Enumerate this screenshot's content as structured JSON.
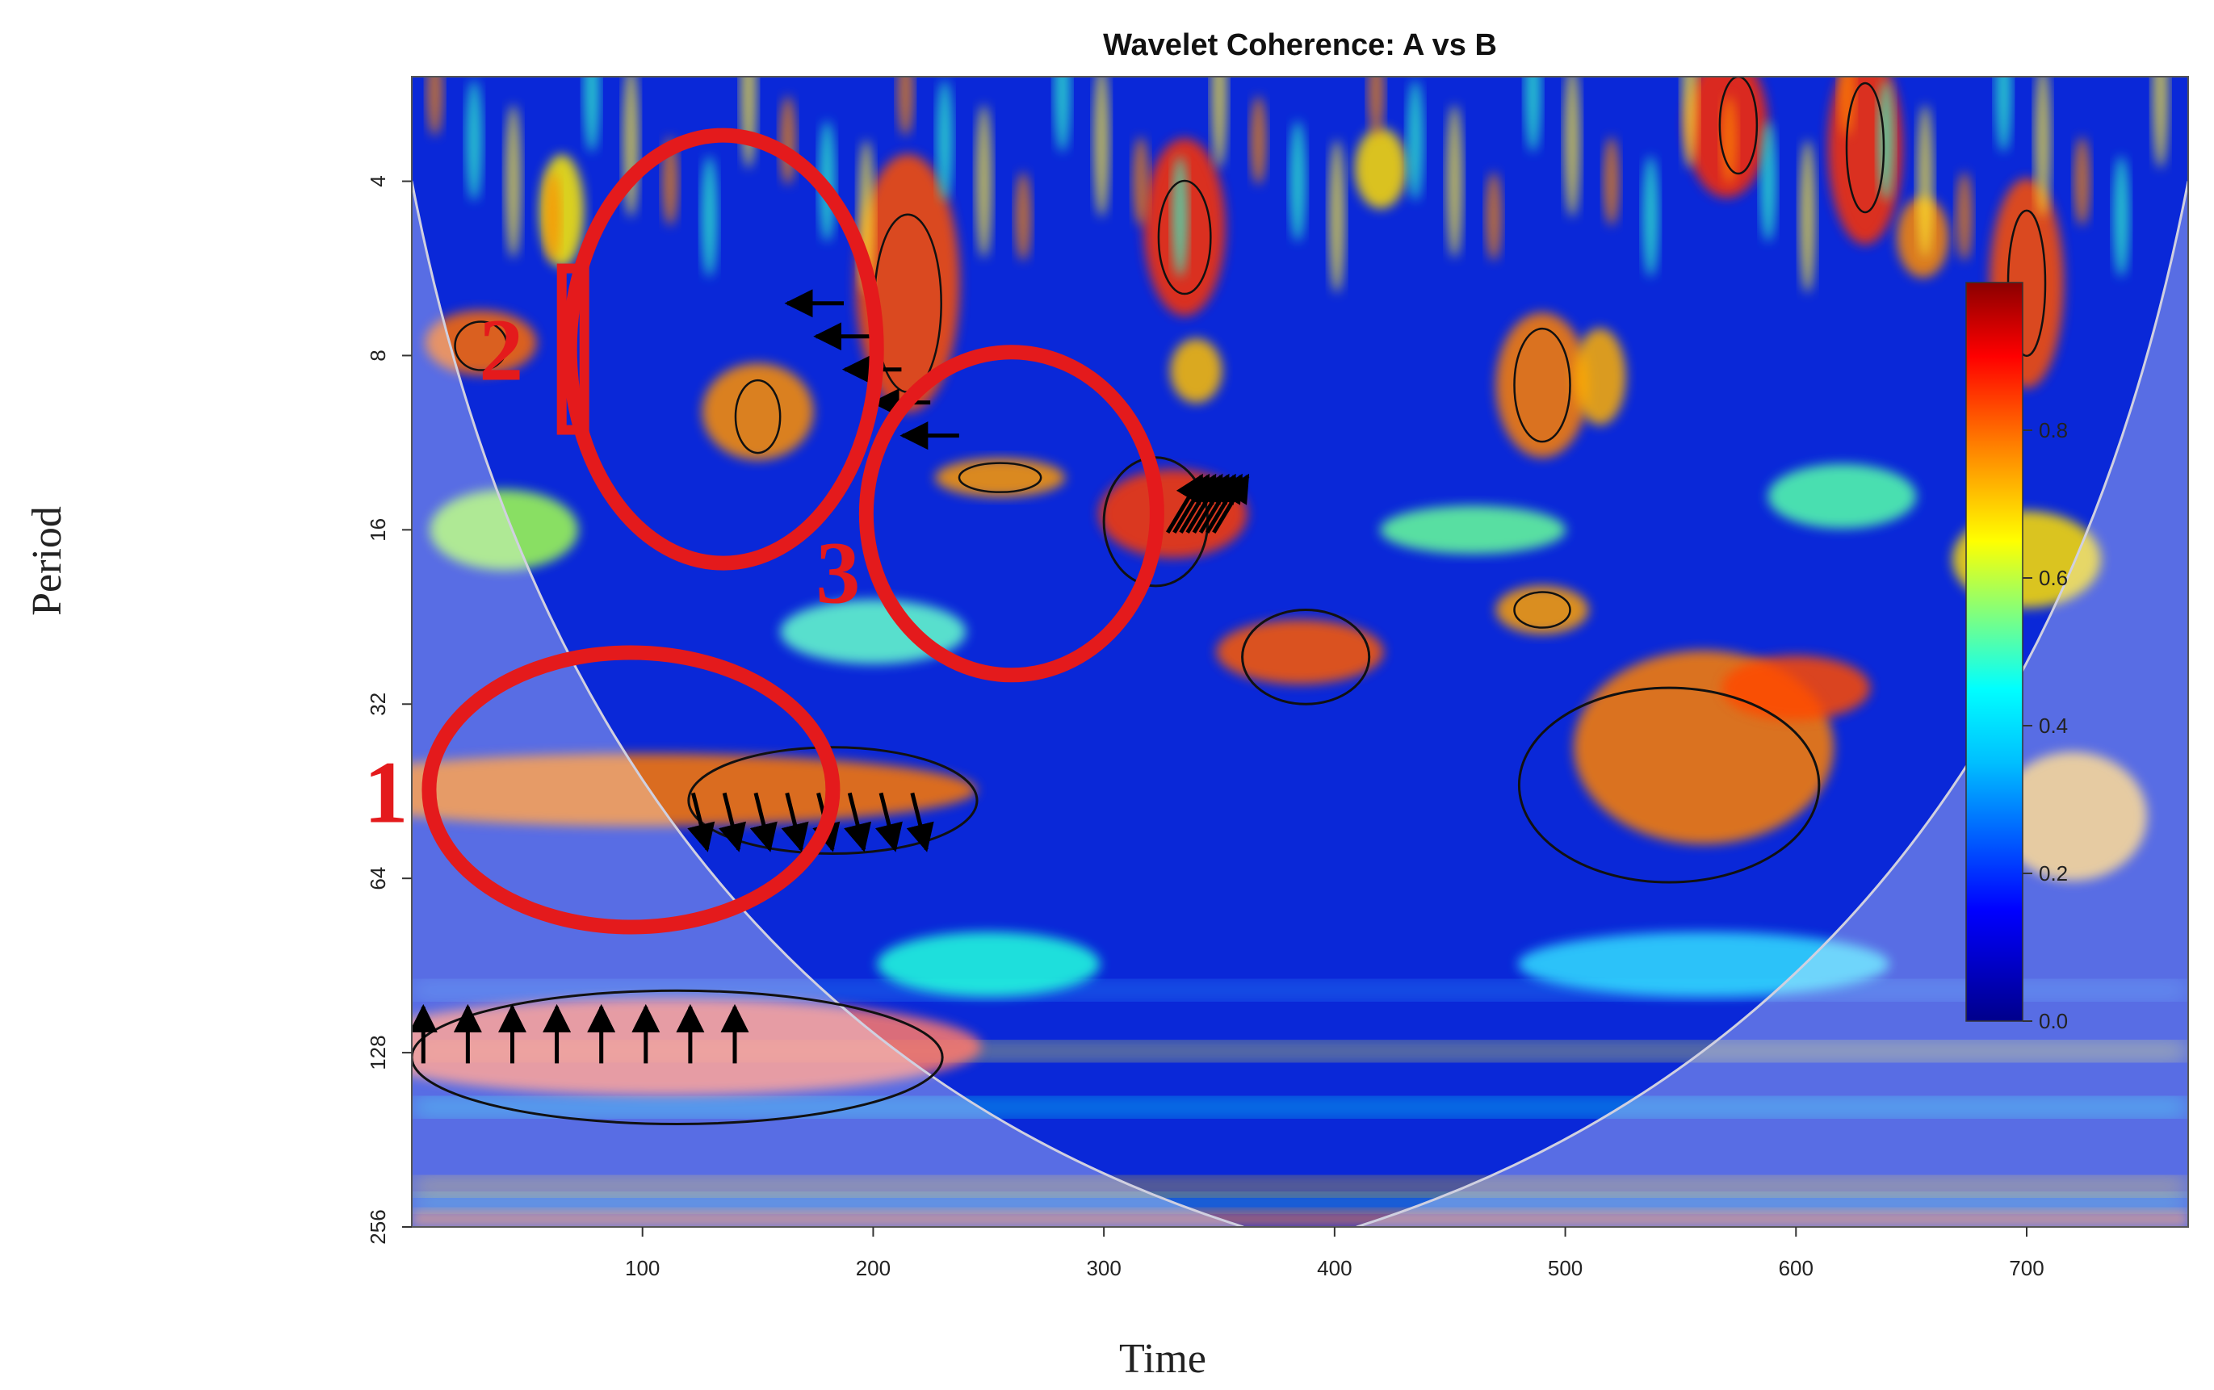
{
  "chart_data": {
    "type": "heatmap",
    "title": "Wavelet Coherence: A vs B",
    "xlabel": "Time",
    "ylabel": "Period",
    "xlim": [
      0,
      770
    ],
    "ylim_log2": [
      1.4,
      8.0
    ],
    "x_ticks": [
      100,
      200,
      300,
      400,
      500,
      600,
      700
    ],
    "y_ticks": [
      {
        "value": 4,
        "label": "4"
      },
      {
        "value": 8,
        "label": "8"
      },
      {
        "value": 16,
        "label": "16"
      },
      {
        "value": 32,
        "label": "32"
      },
      {
        "value": 64,
        "label": "64"
      },
      {
        "value": 128,
        "label": "128"
      },
      {
        "value": 256,
        "label": "256"
      }
    ],
    "colorbar": {
      "range": [
        0,
        1
      ],
      "ticks": [
        {
          "value": 0.0,
          "label": "0.0"
        },
        {
          "value": 0.2,
          "label": "0.2"
        },
        {
          "value": 0.4,
          "label": "0.4"
        },
        {
          "value": 0.6,
          "label": "0.6"
        },
        {
          "value": 0.8,
          "label": "0.8"
        }
      ],
      "colors": [
        "#00008b",
        "#0000ff",
        "#00bfff",
        "#00ffff",
        "#7fff7f",
        "#ffff00",
        "#ff7f00",
        "#ff0000",
        "#8b0000"
      ]
    },
    "significant_regions": [
      {
        "name": "region-a",
        "x": [
          120,
          245
        ],
        "period": [
          38,
          58
        ]
      },
      {
        "name": "region-b",
        "x": [
          0,
          230
        ],
        "period": [
          100,
          170
        ]
      },
      {
        "name": "region-c",
        "x": [
          300,
          345
        ],
        "period": [
          12,
          20
        ]
      },
      {
        "name": "region-d",
        "x": [
          360,
          415
        ],
        "period": [
          22,
          32
        ]
      },
      {
        "name": "region-e",
        "x": [
          480,
          610
        ],
        "period": [
          30,
          65
        ]
      }
    ],
    "phase_arrow_groups": [
      {
        "name": "arrows-right-mid",
        "x": [
          175,
          225
        ],
        "period": [
          6.5,
          11
        ],
        "direction": "left"
      },
      {
        "name": "arrows-low",
        "x": [
          5,
          140
        ],
        "period": [
          95,
          150
        ],
        "direction": "up"
      },
      {
        "name": "arrows-band",
        "x": [
          125,
          220
        ],
        "period": [
          40,
          65
        ],
        "direction": "down"
      },
      {
        "name": "arrows-diag",
        "x": [
          335,
          355
        ],
        "period": [
          11,
          19
        ],
        "direction": "up-right"
      }
    ],
    "annotations": [
      {
        "label": "1",
        "x": 95,
        "period": 45
      },
      {
        "label": "2",
        "x": 135,
        "period": 7.8
      },
      {
        "label": "3",
        "x": 260,
        "period": 15
      }
    ]
  }
}
